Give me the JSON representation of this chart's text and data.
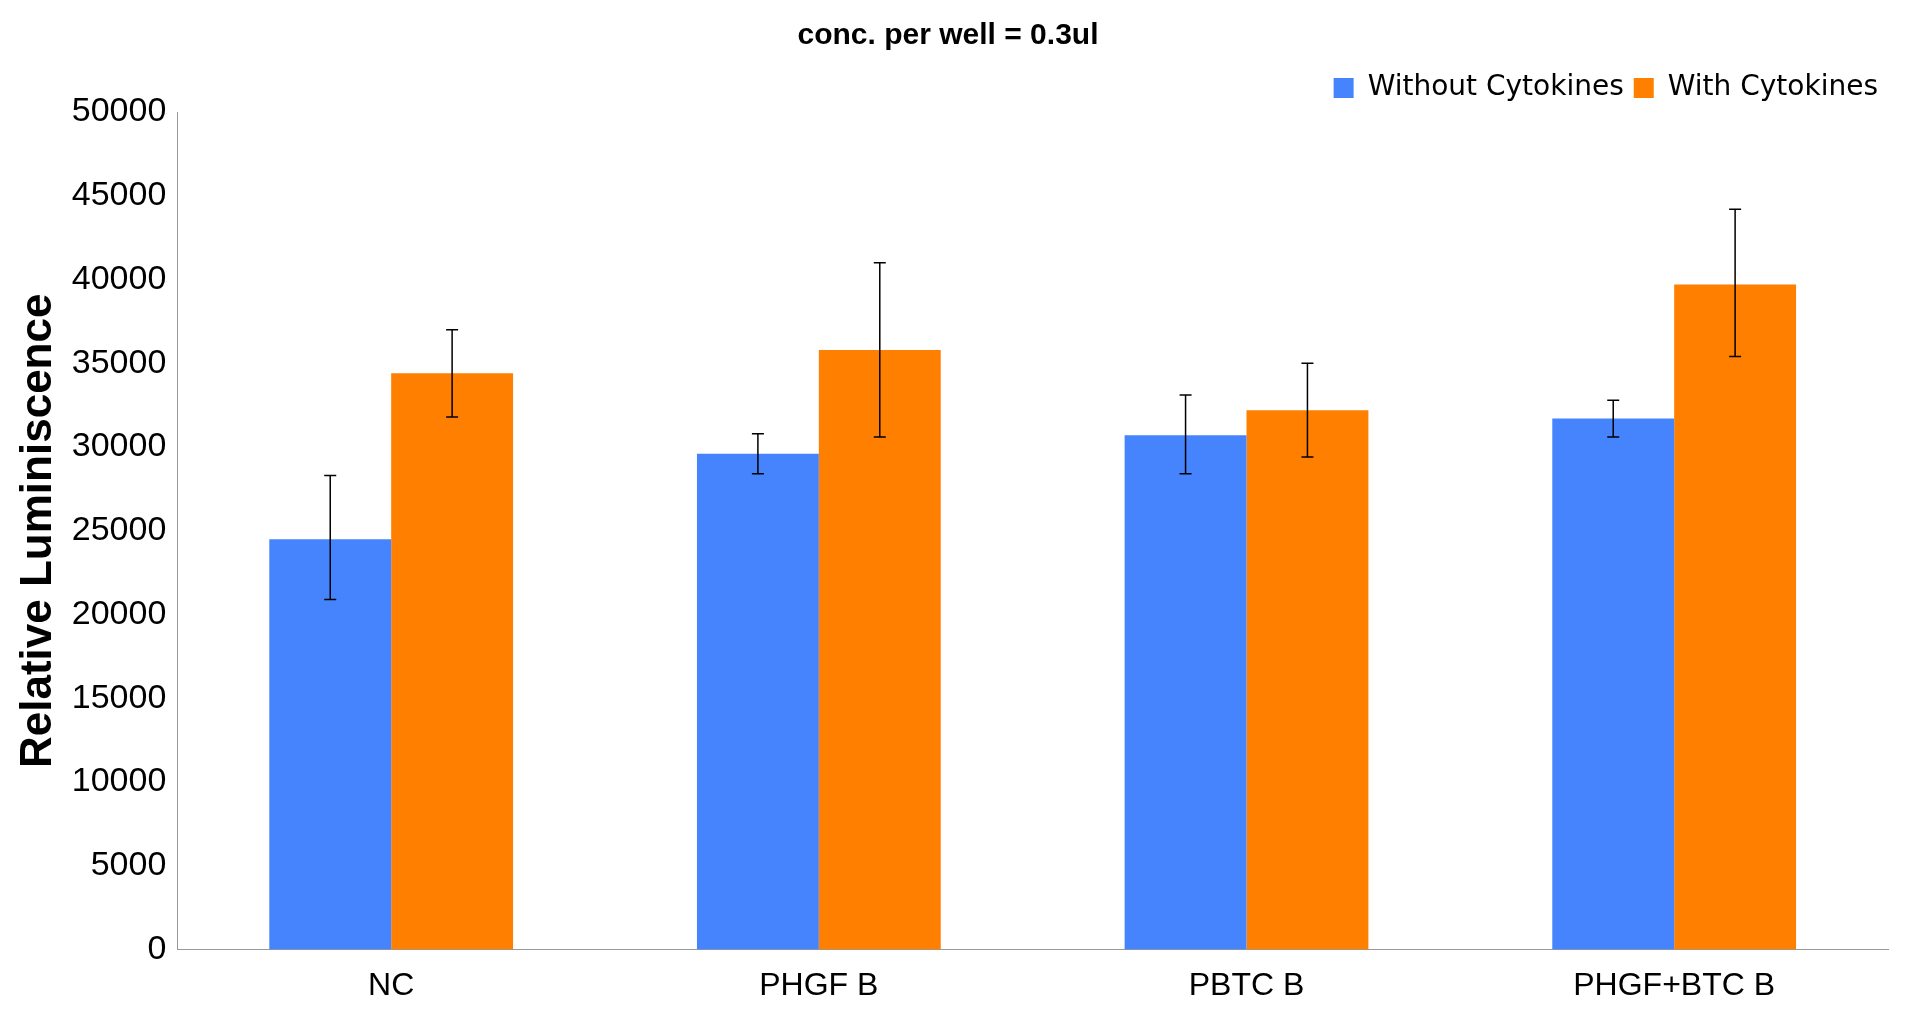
{
  "chart_data": {
    "type": "bar",
    "title": "conc. per well = 0.3ul",
    "ylabel": "Relative Luminiscence",
    "categories": [
      "NC",
      "PHGF B",
      "PBTC B",
      "PHGF+BTC B"
    ],
    "series": [
      {
        "name": "Without Cytokines",
        "color": "#4684fe",
        "values": [
          24500,
          29600,
          30700,
          31700
        ],
        "errors": [
          [
            20900,
            28300
          ],
          [
            28400,
            30800
          ],
          [
            28400,
            33100
          ],
          [
            30600,
            32800
          ]
        ]
      },
      {
        "name": "With Cytokines",
        "color": "#ff7f00",
        "values": [
          34400,
          35800,
          32200,
          39700
        ],
        "errors": [
          [
            31800,
            37000
          ],
          [
            30600,
            41000
          ],
          [
            29400,
            35000
          ],
          [
            35400,
            44200
          ]
        ]
      }
    ],
    "ylim": [
      0,
      50000
    ],
    "yticks": [
      0,
      5000,
      10000,
      15000,
      20000,
      25000,
      30000,
      35000,
      40000,
      45000,
      50000
    ],
    "grid": false,
    "legend": "top right"
  }
}
